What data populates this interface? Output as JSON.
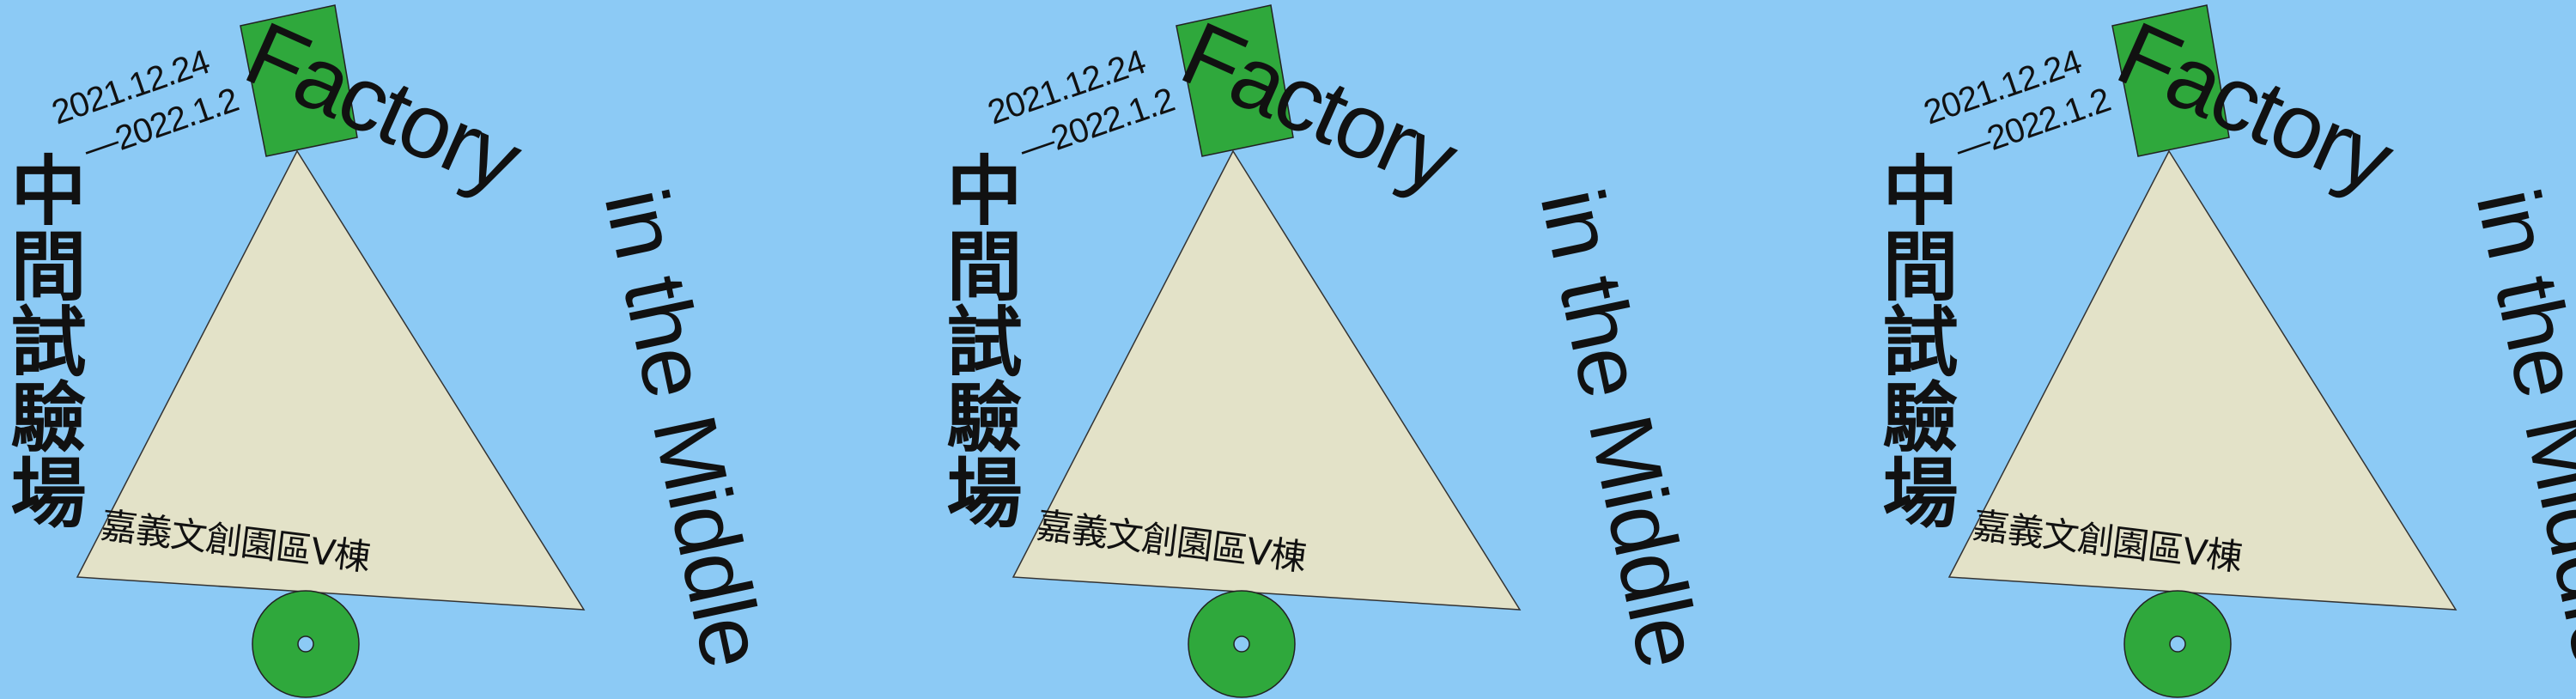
{
  "colors": {
    "background": "#8ccaf5",
    "triangle_fill": "#e3e2c8",
    "green": "#2fa83c",
    "text": "#111111"
  },
  "poster": {
    "date_start": "2021.12.24",
    "date_end": "—2022.1.2",
    "title_en_line1": "Factory",
    "title_en_line2": "in the Middle",
    "title_cn": "中間試驗場",
    "venue": "嘉義文創園區V棟"
  },
  "repeat_count": 3
}
